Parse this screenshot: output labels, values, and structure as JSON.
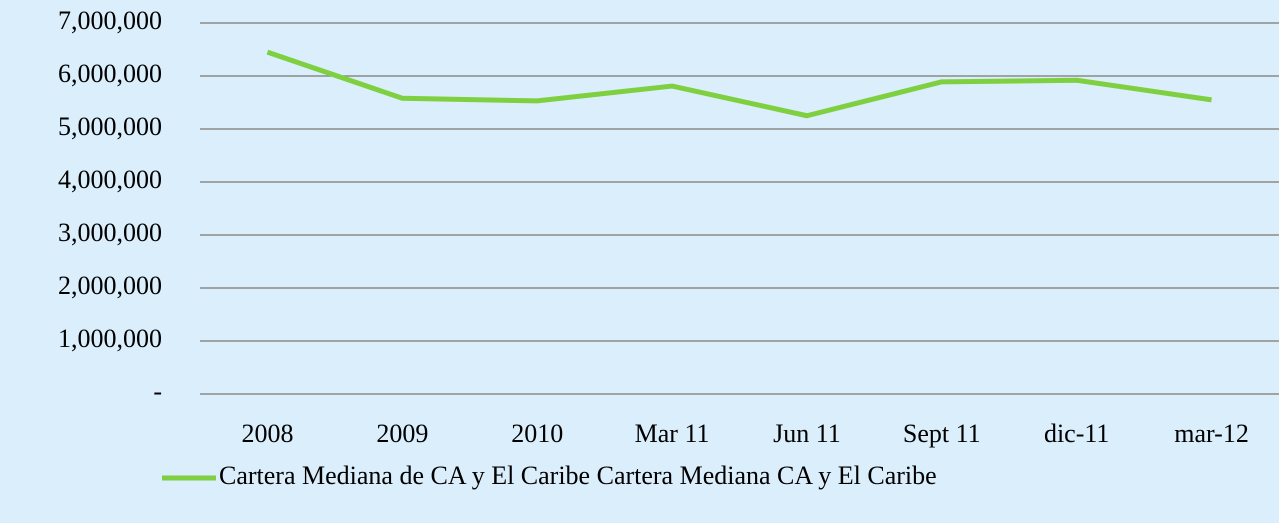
{
  "chart_data": {
    "type": "line",
    "categories": [
      "2008",
      "2009",
      "2010",
      "Mar 11",
      "Jun 11",
      "Sept 11",
      "dic-11",
      "mar-12"
    ],
    "series": [
      {
        "name": "Cartera Mediana de CA y El Caribe Cartera Mediana CA y El Caribe",
        "color": "#7ed040",
        "values": [
          6450000,
          5580000,
          5530000,
          5810000,
          5250000,
          5890000,
          5920000,
          5550000
        ]
      }
    ],
    "ylim": [
      0,
      7000000
    ],
    "yticks": [
      {
        "value": 0,
        "label": "-"
      },
      {
        "value": 1000000,
        "label": "1,000,000"
      },
      {
        "value": 2000000,
        "label": "2,000,000"
      },
      {
        "value": 3000000,
        "label": "3,000,000"
      },
      {
        "value": 4000000,
        "label": "4,000,000"
      },
      {
        "value": 5000000,
        "label": "5,000,000"
      },
      {
        "value": 6000000,
        "label": "6,000,000"
      },
      {
        "value": 7000000,
        "label": "7,000,000"
      }
    ],
    "grid": true,
    "legend": "bottom"
  }
}
